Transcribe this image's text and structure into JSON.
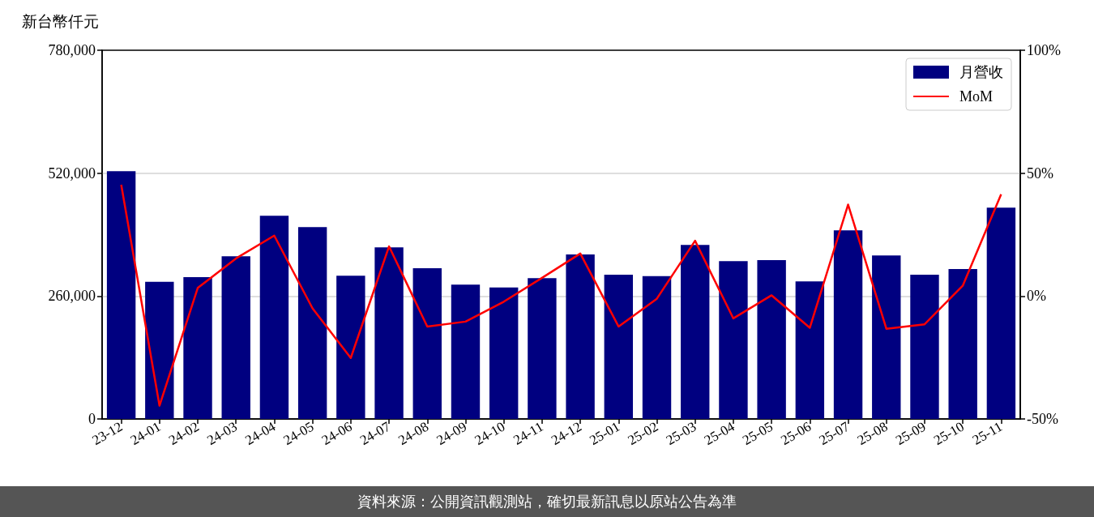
{
  "chart_data": {
    "type": "bar",
    "ylabel": "新台幣仟元",
    "categories": [
      "23-12",
      "24-01",
      "24-02",
      "24-03",
      "24-04",
      "24-05",
      "24-06",
      "24-07",
      "24-08",
      "24-09",
      "24-10",
      "24-11",
      "24-12",
      "25-01",
      "25-02",
      "25-03",
      "25-04",
      "25-05",
      "25-06",
      "25-07",
      "25-08",
      "25-09",
      "25-10",
      "25-11"
    ],
    "series": [
      {
        "name": "月營收",
        "color": "#000080",
        "values": [
          524000,
          290000,
          300000,
          344000,
          430000,
          406000,
          303000,
          363000,
          319000,
          284000,
          278000,
          298000,
          348000,
          305000,
          302000,
          368000,
          334000,
          336000,
          291000,
          399000,
          346000,
          305000,
          317000,
          447000
        ]
      },
      {
        "name": "MoM",
        "type": "line",
        "axis": "y2",
        "color": "#ff0000",
        "values": [
          45.3,
          -44.6,
          3.3,
          15.3,
          24.6,
          -5.0,
          -25.2,
          20.2,
          -12.4,
          -10.4,
          -2.3,
          7.4,
          17.3,
          -12.4,
          -1.1,
          22.5,
          -9.1,
          0.3,
          -12.9,
          37.2,
          -13.3,
          -11.5,
          4.3,
          41.4
        ]
      }
    ],
    "ylim": [
      0,
      780000
    ],
    "yticks": [
      0,
      {
        "value": 260000,
        "label": "260,000"
      },
      {
        "value": 520000,
        "label": "520,000"
      },
      {
        "value": 780000,
        "label": "780,000"
      }
    ],
    "y2lim": [
      -50,
      100
    ],
    "y2ticks": [
      {
        "value": -50,
        "label": "-50%"
      },
      {
        "value": 0,
        "label": "0%"
      },
      {
        "value": 50,
        "label": "50%"
      },
      {
        "value": 100,
        "label": "100%"
      }
    ],
    "grid": "y",
    "legend": "top right",
    "marker": "none",
    "annotations": [
      "資料來源：公開資訊觀測站，確切最新訊息以原站公告為準"
    ]
  }
}
